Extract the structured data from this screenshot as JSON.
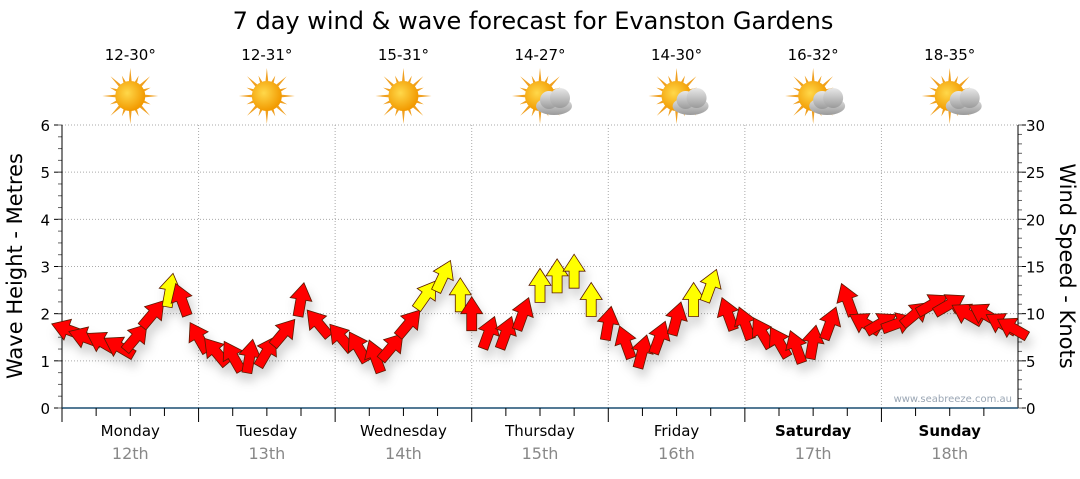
{
  "chart_data": {
    "type": "scatter",
    "title": "7 day wind & wave forecast for Evanston Gardens",
    "ylabel": "Wave Height - Metres",
    "y2label": "Wind Speed - Knots",
    "ylim": [
      0,
      6
    ],
    "y2lim": [
      0,
      30
    ],
    "yticks": [
      "0",
      "1",
      "2",
      "3",
      "4",
      "5",
      "6"
    ],
    "y2ticks": [
      "0",
      "5",
      "10",
      "15",
      "20",
      "25",
      "30"
    ],
    "grid": true,
    "watermark": "www.seabreeze.com.au",
    "colors": {
      "red": "#ff0000",
      "yellow": "#ffff00"
    },
    "days": [
      {
        "name": "Monday",
        "date": "12th",
        "temp": "12-30°",
        "icon": "sun-icon",
        "bold": false
      },
      {
        "name": "Tuesday",
        "date": "13th",
        "temp": "12-31°",
        "icon": "sun-icon",
        "bold": false
      },
      {
        "name": "Wednesday",
        "date": "14th",
        "temp": "15-31°",
        "icon": "sun-icon",
        "bold": false
      },
      {
        "name": "Thursday",
        "date": "15th",
        "temp": "14-27°",
        "icon": "sun-cloud-icon",
        "bold": false
      },
      {
        "name": "Friday",
        "date": "16th",
        "temp": "14-30°",
        "icon": "sun-cloud-icon",
        "bold": false
      },
      {
        "name": "Saturday",
        "date": "17th",
        "temp": "16-32°",
        "icon": "sun-cloud-icon",
        "bold": true
      },
      {
        "name": "Sunday",
        "date": "18th",
        "temp": "18-35°",
        "icon": "sun-cloud-icon",
        "bold": true
      }
    ],
    "wind": [
      [
        [
          1,
          8.3,
          290,
          "red"
        ],
        [
          4,
          7.5,
          290,
          "red"
        ],
        [
          7,
          7,
          300,
          "red"
        ],
        [
          10,
          6.5,
          300,
          "red"
        ],
        [
          13,
          7.5,
          40,
          "red"
        ],
        [
          16,
          10,
          40,
          "red"
        ],
        [
          19,
          12.5,
          10,
          "yellow"
        ],
        [
          21,
          11.5,
          340,
          "red"
        ]
      ],
      [
        [
          0,
          7.5,
          330,
          "red"
        ],
        [
          3,
          6,
          320,
          "red"
        ],
        [
          6,
          5.5,
          330,
          "red"
        ],
        [
          9,
          5.5,
          10,
          "red"
        ],
        [
          12,
          6,
          30,
          "red"
        ],
        [
          15,
          8,
          40,
          "red"
        ],
        [
          18,
          11.5,
          10,
          "red"
        ],
        [
          21,
          9,
          320,
          "red"
        ]
      ],
      [
        [
          1,
          7.5,
          320,
          "red"
        ],
        [
          4,
          6.5,
          330,
          "red"
        ],
        [
          7,
          5.5,
          340,
          "red"
        ],
        [
          10,
          6.5,
          40,
          "red"
        ],
        [
          13,
          9,
          40,
          "red"
        ],
        [
          16,
          12,
          35,
          "yellow"
        ],
        [
          19,
          14,
          25,
          "yellow"
        ],
        [
          22,
          12,
          0,
          "yellow"
        ]
      ],
      [
        [
          0,
          10,
          0,
          "red"
        ],
        [
          3,
          8,
          20,
          "red"
        ],
        [
          6,
          8,
          20,
          "red"
        ],
        [
          9,
          10,
          20,
          "red"
        ],
        [
          12,
          13,
          0,
          "yellow"
        ],
        [
          15,
          14,
          0,
          "yellow"
        ],
        [
          18,
          14.5,
          0,
          "yellow"
        ],
        [
          21,
          11.5,
          0,
          "yellow"
        ]
      ],
      [
        [
          0,
          9,
          10,
          "red"
        ],
        [
          3,
          7,
          340,
          "red"
        ],
        [
          6,
          6,
          15,
          "red"
        ],
        [
          9,
          7.5,
          20,
          "red"
        ],
        [
          12,
          9.5,
          15,
          "red"
        ],
        [
          15,
          11.5,
          0,
          "yellow"
        ],
        [
          18,
          13,
          20,
          "yellow"
        ],
        [
          21,
          10,
          340,
          "red"
        ]
      ],
      [
        [
          0,
          9,
          340,
          "red"
        ],
        [
          3,
          8,
          330,
          "red"
        ],
        [
          6,
          7,
          330,
          "red"
        ],
        [
          9,
          6.5,
          340,
          "red"
        ],
        [
          12,
          7,
          10,
          "red"
        ],
        [
          15,
          9,
          20,
          "red"
        ],
        [
          18,
          11.5,
          340,
          "red"
        ],
        [
          21,
          9,
          300,
          "red"
        ]
      ],
      [
        [
          0,
          9,
          60,
          "red"
        ],
        [
          3,
          9,
          70,
          "red"
        ],
        [
          6,
          10,
          50,
          "red"
        ],
        [
          9,
          11,
          60,
          "red"
        ],
        [
          12,
          11,
          60,
          "red"
        ],
        [
          15,
          10,
          300,
          "red"
        ],
        [
          18,
          10,
          300,
          "red"
        ],
        [
          21,
          9,
          300,
          "red"
        ],
        [
          23,
          8.5,
          300,
          "red"
        ]
      ]
    ]
  }
}
